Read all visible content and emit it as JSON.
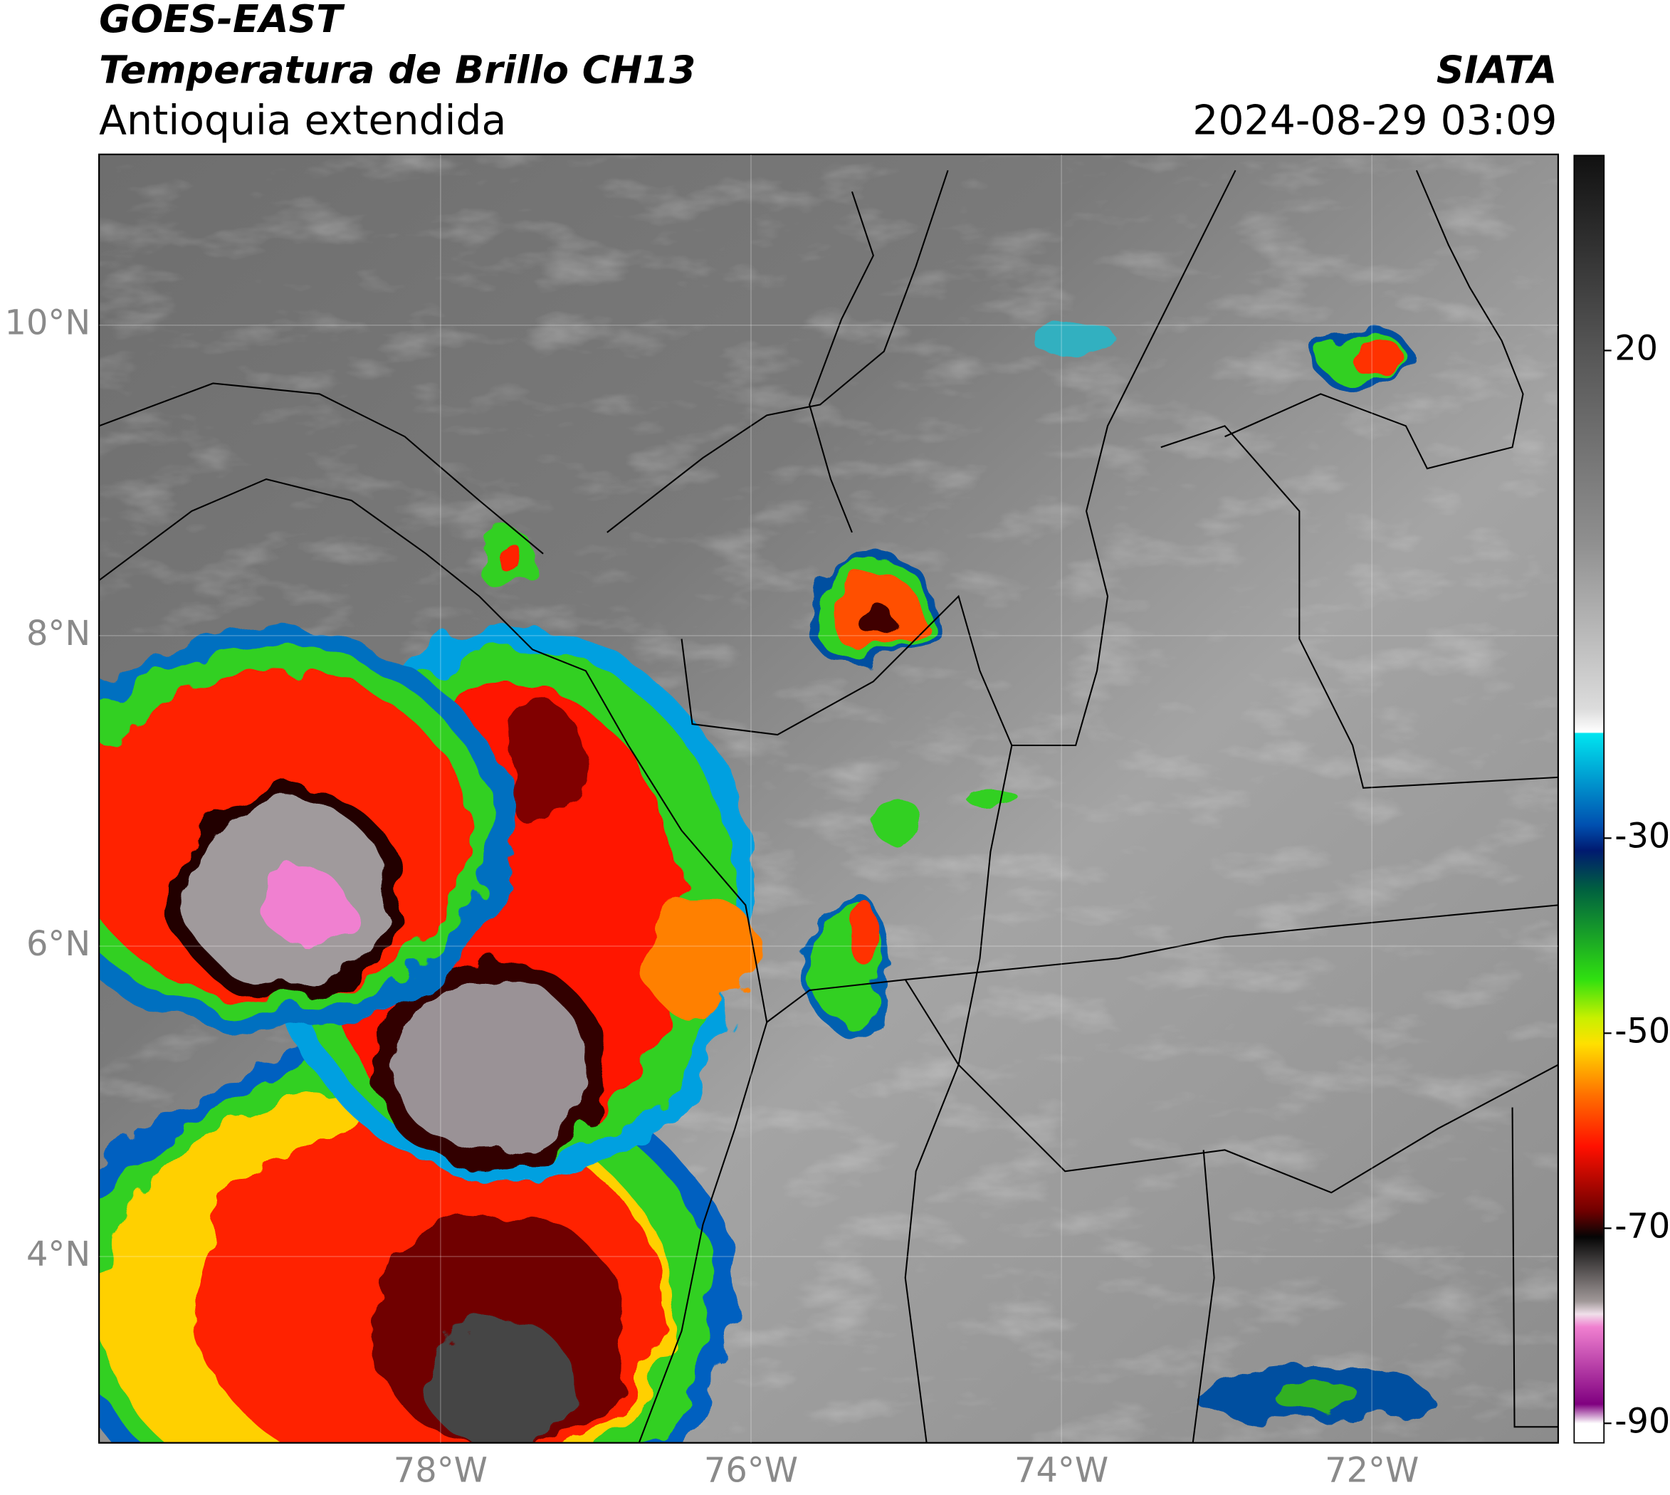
{
  "header": {
    "title_line1": "GOES-EAST",
    "title_line2": "Temperatura de Brillo CH13",
    "region": "Antioquia extendida",
    "source": "SIATA",
    "timestamp": "2024-08-29 03:09"
  },
  "map": {
    "lonlim": [
      -80.2,
      -70.8
    ],
    "latlim": [
      2.8,
      11.1
    ],
    "xticks": [
      {
        "value": -78,
        "label": "78°W"
      },
      {
        "value": -76,
        "label": "76°W"
      },
      {
        "value": -74,
        "label": "74°W"
      },
      {
        "value": -72,
        "label": "72°W"
      }
    ],
    "yticks": [
      {
        "value": 4,
        "label": "4°N"
      },
      {
        "value": 6,
        "label": "6°N"
      },
      {
        "value": 8,
        "label": "8°N"
      },
      {
        "value": 10,
        "label": "10°N"
      }
    ],
    "grid": true
  },
  "colorbar": {
    "lim": [
      -92,
      40
    ],
    "ticks": [
      20,
      -30,
      -50,
      -70,
      -90
    ]
  }
}
